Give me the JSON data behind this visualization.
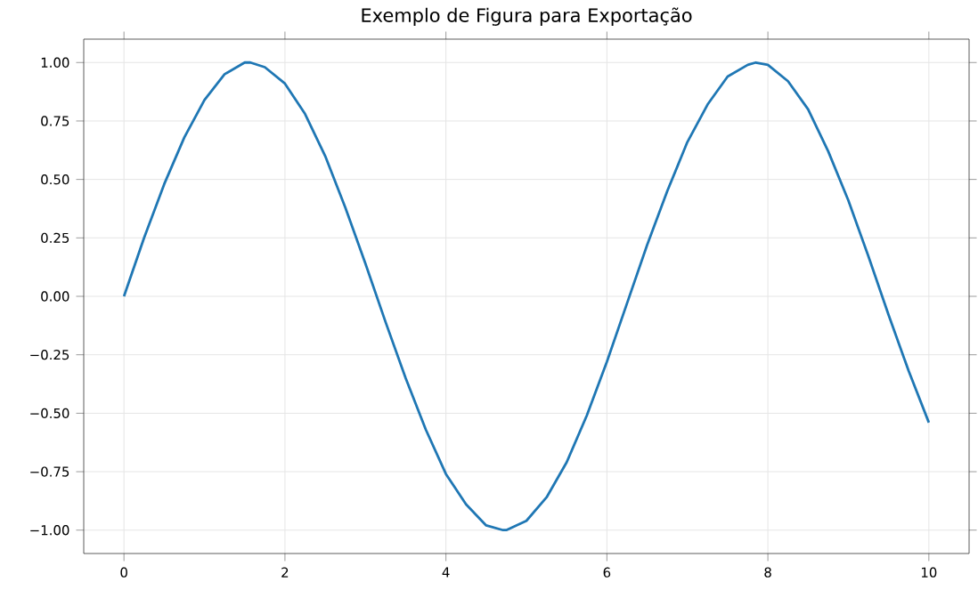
{
  "chart_data": {
    "type": "line",
    "title": "Exemplo de Figura para Exportação",
    "series": [
      {
        "color": "#1f77b4",
        "x": [
          0,
          0.25,
          0.5,
          0.75,
          1,
          1.25,
          1.5,
          1.57,
          1.75,
          2,
          2.25,
          2.5,
          2.75,
          3,
          3.25,
          3.5,
          3.75,
          4,
          4.25,
          4.5,
          4.71,
          4.75,
          5,
          5.25,
          5.5,
          5.75,
          6,
          6.25,
          6.5,
          6.75,
          7,
          7.25,
          7.5,
          7.75,
          7.85,
          8,
          8.25,
          8.5,
          8.75,
          9,
          9.25,
          9.5,
          9.75,
          10
        ],
        "values": [
          0,
          0.25,
          0.48,
          0.68,
          0.84,
          0.95,
          1.0,
          1.0,
          0.98,
          0.91,
          0.78,
          0.6,
          0.38,
          0.14,
          -0.11,
          -0.35,
          -0.57,
          -0.76,
          -0.89,
          -0.98,
          -1.0,
          -1.0,
          -0.96,
          -0.86,
          -0.71,
          -0.51,
          -0.28,
          -0.03,
          0.22,
          0.45,
          0.66,
          0.82,
          0.94,
          0.99,
          1.0,
          0.99,
          0.92,
          0.8,
          0.62,
          0.41,
          0.17,
          -0.08,
          -0.32,
          -0.54
        ]
      }
    ],
    "xlim": [
      -0.5,
      10.5
    ],
    "ylim": [
      -1.1,
      1.1
    ],
    "xticks": [
      0,
      2,
      4,
      6,
      8,
      10
    ],
    "yticks": [
      {
        "value": -1,
        "label": "−1.00"
      },
      {
        "value": -0.75,
        "label": "−0.75"
      },
      {
        "value": -0.5,
        "label": "−0.50"
      },
      {
        "value": -0.25,
        "label": "−0.25"
      },
      {
        "value": 0,
        "label": "0.00"
      },
      {
        "value": 0.25,
        "label": "0.25"
      },
      {
        "value": 0.5,
        "label": "0.50"
      },
      {
        "value": 0.75,
        "label": "0.75"
      },
      {
        "value": 1,
        "label": "1.00"
      }
    ],
    "grid": true,
    "line_style": "solid"
  }
}
